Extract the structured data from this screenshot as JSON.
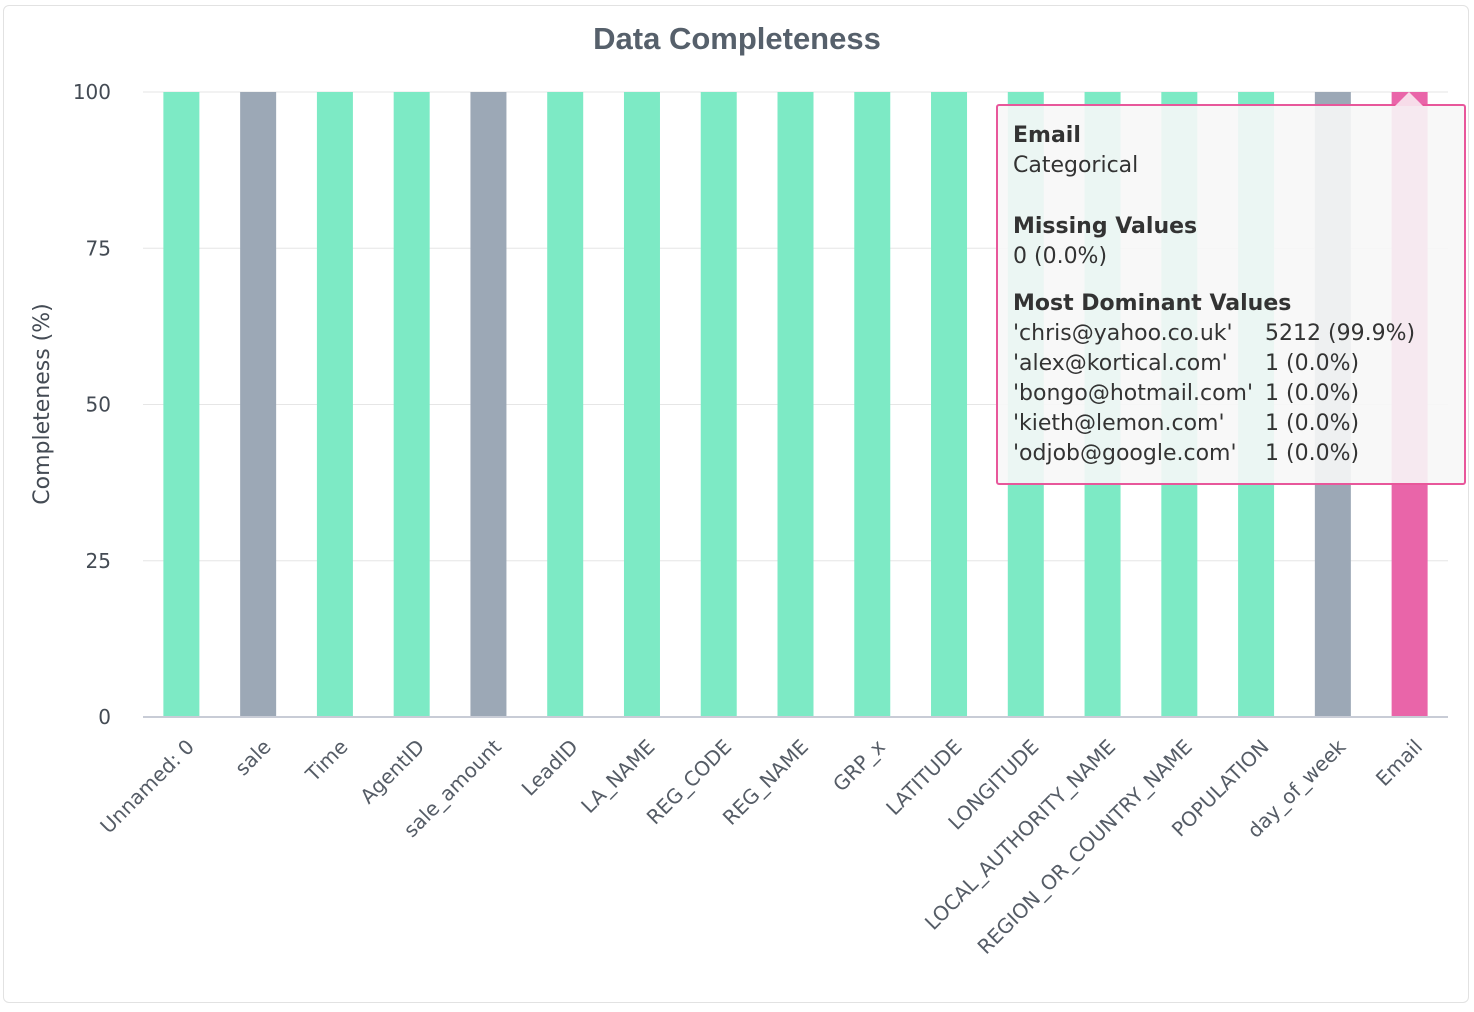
{
  "chart_data": {
    "type": "bar",
    "title": "Data Completeness",
    "xlabel": "",
    "ylabel": "Completeness (%)",
    "ylim": [
      0,
      100
    ],
    "yticks": [
      0,
      25,
      50,
      75,
      100
    ],
    "grid": true,
    "legend": "none",
    "categories": [
      "Unnamed: 0",
      "sale",
      "Time",
      "AgentID",
      "sale_amount",
      "LeadID",
      "LA_NAME",
      "REG_CODE",
      "REG_NAME",
      "GRP_x",
      "LATITUDE",
      "LONGITUDE",
      "LOCAL_AUTHORITY_NAME",
      "REGION_OR_COUNTRY_NAME",
      "POPULATION",
      "day_of_week",
      "Email"
    ],
    "values": [
      100,
      100,
      100,
      100,
      100,
      100,
      100,
      100,
      100,
      100,
      100,
      100,
      100,
      100,
      100,
      100,
      100
    ],
    "bar_colors": [
      "#7deac5",
      "#9ca8b6",
      "#7deac5",
      "#7deac5",
      "#9ca8b6",
      "#7deac5",
      "#7deac5",
      "#7deac5",
      "#7deac5",
      "#7deac5",
      "#7deac5",
      "#7deac5",
      "#7deac5",
      "#7deac5",
      "#7deac5",
      "#9ca8b6",
      "#e965a9"
    ],
    "highlighted_category": "Email"
  },
  "tooltip": {
    "name": "Email",
    "type": "Categorical",
    "missing_heading": "Missing Values",
    "missing_value": "0 (0.0%)",
    "dominant_heading": "Most Dominant Values",
    "dominant_values": [
      {
        "value": "'chris@yahoo.co.uk'",
        "count": "5212 (99.9%)"
      },
      {
        "value": "'alex@kortical.com'",
        "count": "1 (0.0%)"
      },
      {
        "value": "'bongo@hotmail.com'",
        "count": "1 (0.0%)"
      },
      {
        "value": "'kieth@lemon.com'",
        "count": "1 (0.0%)"
      },
      {
        "value": "'odjob@google.com'",
        "count": "1 (0.0%)"
      }
    ]
  },
  "colors": {
    "complete": "#7deac5",
    "numeric": "#9ca8b6",
    "highlight": "#e965a9",
    "tooltip_border": "#e8579b"
  }
}
